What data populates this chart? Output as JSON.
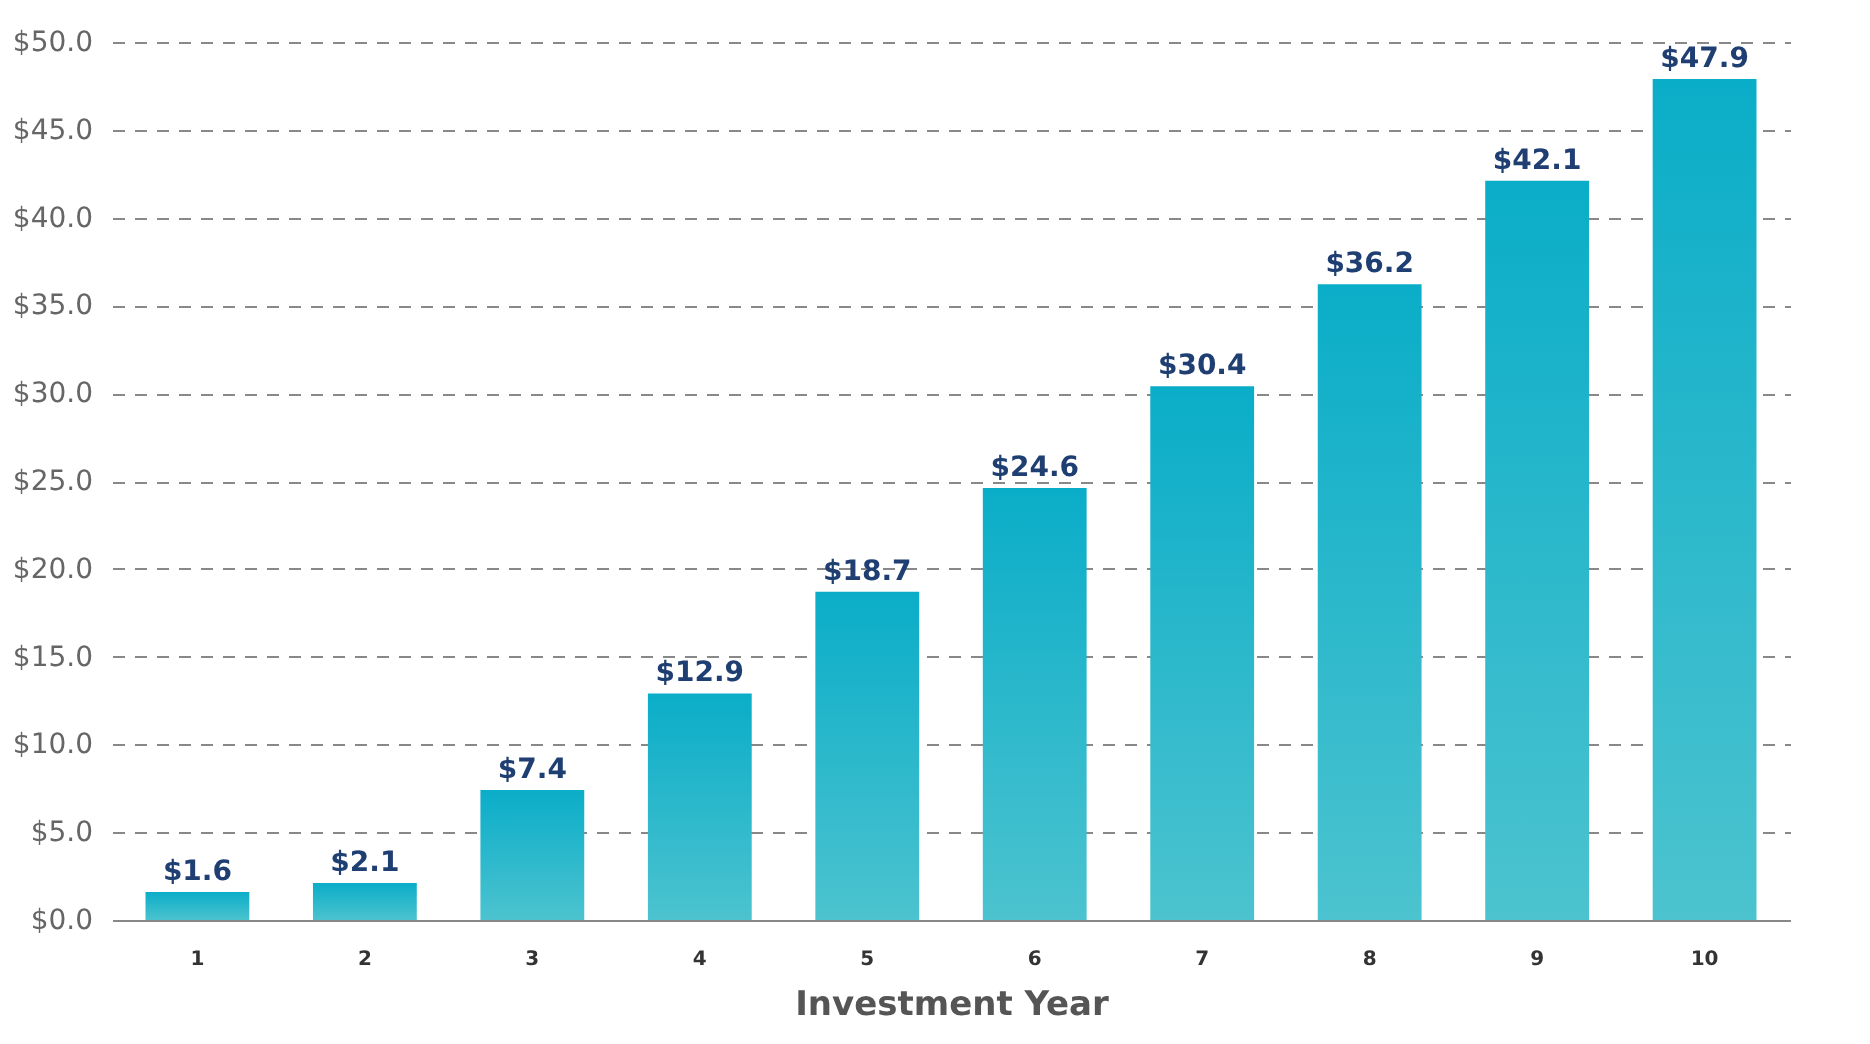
{
  "chart_data": {
    "type": "bar",
    "xlabel": "Investment Year",
    "categories": [
      "1",
      "2",
      "3",
      "4",
      "5",
      "6",
      "7",
      "8",
      "9",
      "10"
    ],
    "values": [
      1.6,
      2.1,
      7.4,
      12.9,
      18.7,
      24.6,
      30.4,
      36.2,
      42.1,
      47.9
    ],
    "value_labels": [
      "$1.6",
      "$2.1",
      "$7.4",
      "$12.9",
      "$18.7",
      "$24.6",
      "$30.4",
      "$36.2",
      "$42.1",
      "$47.9"
    ],
    "color": "#0aadc8",
    "ylim": [
      0,
      50
    ],
    "yticks": [
      {
        "value": 0,
        "label": "$0.0"
      },
      {
        "value": 5,
        "label": "$5.0"
      },
      {
        "value": 10,
        "label": "$10.0"
      },
      {
        "value": 15,
        "label": "$15.0"
      },
      {
        "value": 20,
        "label": "$20.0"
      },
      {
        "value": 25,
        "label": "$25.0"
      },
      {
        "value": 30,
        "label": "$30.0"
      },
      {
        "value": 35,
        "label": "$35.0"
      },
      {
        "value": 40,
        "label": "$40.0"
      },
      {
        "value": 45,
        "label": "$45.0"
      },
      {
        "value": 50,
        "label": "$50.0"
      }
    ],
    "grid": "y"
  }
}
